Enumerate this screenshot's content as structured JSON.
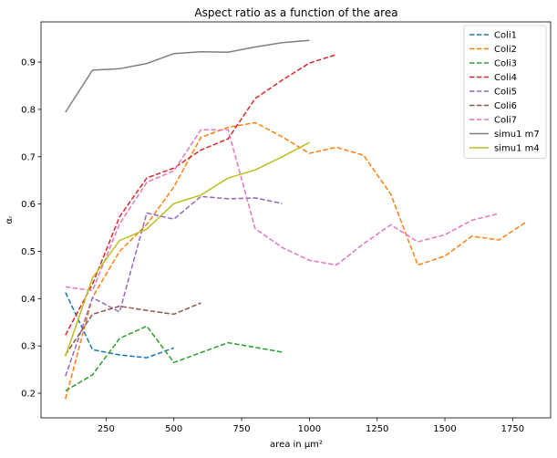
{
  "chart_data": {
    "type": "line",
    "title": "Aspect ratio as a function of the area",
    "xlabel": "area in μm²",
    "ylabel": "αᵣ",
    "xlim": [
      10,
      1890
    ],
    "ylim": [
      0.148,
      0.985
    ],
    "xticks": [
      250,
      500,
      750,
      1000,
      1250,
      1500,
      1750
    ],
    "yticks": [
      0.2,
      0.3,
      0.4,
      0.5,
      0.6,
      0.7,
      0.8,
      0.9
    ],
    "grid": false,
    "legend_position": "top-right",
    "series": [
      {
        "name": "Coli1",
        "color": "#1f77b4",
        "dash": "dashed",
        "x": [
          100,
          200,
          300,
          400,
          500
        ],
        "y": [
          0.413,
          0.292,
          0.281,
          0.275,
          0.296
        ]
      },
      {
        "name": "Coli2",
        "color": "#ff7f0e",
        "dash": "dashed",
        "x": [
          100,
          200,
          300,
          400,
          500,
          600,
          700,
          800,
          900,
          1000,
          1100,
          1200,
          1300,
          1400,
          1500,
          1600,
          1700,
          1800
        ],
        "y": [
          0.188,
          0.403,
          0.5,
          0.557,
          0.636,
          0.741,
          0.762,
          0.772,
          0.742,
          0.707,
          0.72,
          0.703,
          0.621,
          0.471,
          0.49,
          0.532,
          0.524,
          0.562
        ]
      },
      {
        "name": "Coli3",
        "color": "#2ca02c",
        "dash": "dashed",
        "x": [
          100,
          200,
          300,
          400,
          500,
          700,
          900
        ],
        "y": [
          0.205,
          0.239,
          0.316,
          0.342,
          0.265,
          0.307,
          0.287
        ]
      },
      {
        "name": "Coli4",
        "color": "#d62728",
        "dash": "dashed",
        "x": [
          100,
          200,
          300,
          400,
          500,
          600,
          700,
          800,
          900,
          1000,
          1100
        ],
        "y": [
          0.323,
          0.431,
          0.573,
          0.655,
          0.676,
          0.714,
          0.738,
          0.823,
          0.862,
          0.898,
          0.916
        ]
      },
      {
        "name": "Coli5",
        "color": "#9467bd",
        "dash": "dashed",
        "x": [
          100,
          200,
          300,
          400,
          500,
          600,
          700,
          800,
          900
        ],
        "y": [
          0.236,
          0.402,
          0.372,
          0.581,
          0.568,
          0.616,
          0.611,
          0.613,
          0.601
        ]
      },
      {
        "name": "Coli6",
        "color": "#8c564b",
        "dash": "dashed",
        "x": [
          100,
          200,
          300,
          400,
          500,
          600
        ],
        "y": [
          0.281,
          0.367,
          0.384,
          0.375,
          0.367,
          0.391
        ]
      },
      {
        "name": "Coli7",
        "color": "#e377c2",
        "dash": "dashed",
        "x": [
          100,
          200,
          300,
          400,
          500,
          600,
          700,
          800,
          900,
          1000,
          1100,
          1200,
          1300,
          1400,
          1500,
          1600,
          1700
        ],
        "y": [
          0.425,
          0.417,
          0.558,
          0.646,
          0.67,
          0.757,
          0.757,
          0.548,
          0.508,
          0.481,
          0.471,
          0.516,
          0.556,
          0.52,
          0.535,
          0.566,
          0.58
        ]
      },
      {
        "name": "simu1 m7",
        "color": "#7f7f7f",
        "dash": "solid",
        "x": [
          100,
          200,
          300,
          400,
          500,
          600,
          700,
          800,
          900,
          1000
        ],
        "y": [
          0.794,
          0.883,
          0.886,
          0.897,
          0.918,
          0.922,
          0.921,
          0.932,
          0.941,
          0.946
        ]
      },
      {
        "name": "simu1 m4",
        "color": "#bcbd22",
        "dash": "solid",
        "x": [
          100,
          200,
          300,
          400,
          500,
          600,
          700,
          800,
          900,
          1000
        ],
        "y": [
          0.278,
          0.444,
          0.523,
          0.547,
          0.601,
          0.619,
          0.655,
          0.672,
          0.7,
          0.73
        ]
      }
    ]
  }
}
